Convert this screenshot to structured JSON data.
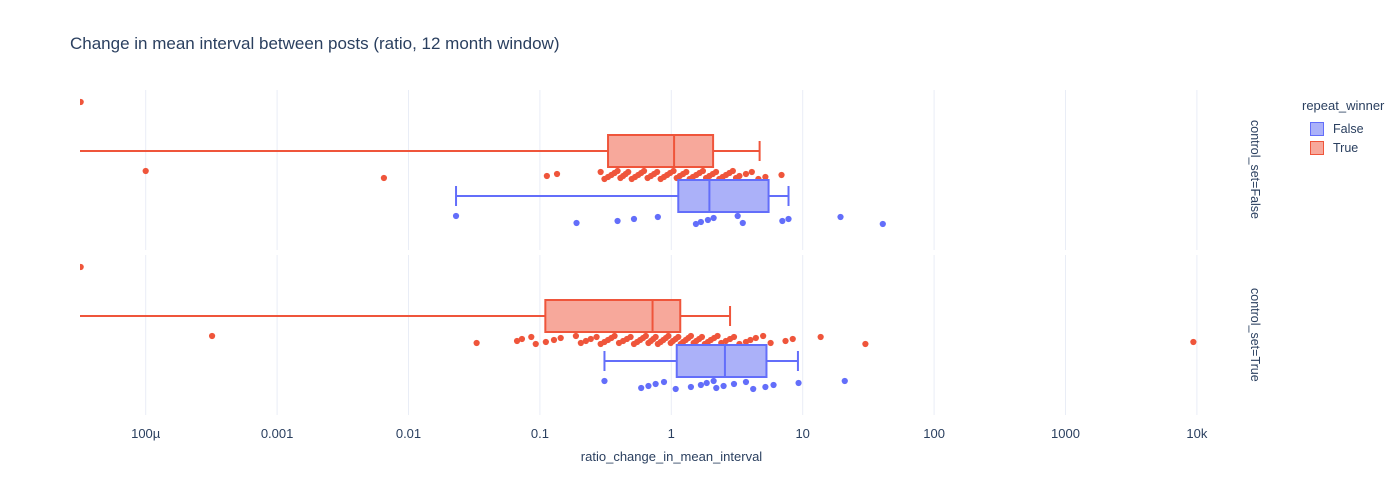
{
  "chart_data": {
    "type": "box",
    "orientation": "horizontal",
    "title": "Change in mean interval between posts (ratio, 12 month window)",
    "xlabel": "ratio_change_in_mean_interval",
    "x_scale": "log",
    "x_range_log10": [
      -4.5,
      4.5
    ],
    "grid": "vertical-only",
    "colors": {
      "text": "#2a3f5f",
      "gridline": "#e9edf6",
      "blue": "#636efa",
      "blue_fill": "#abb1f9",
      "red": "#ef553b",
      "red_fill": "#f7a89b"
    },
    "x_ticks": [
      {
        "value": 0.0001,
        "label": "100µ"
      },
      {
        "value": 0.001,
        "label": "0.001"
      },
      {
        "value": 0.01,
        "label": "0.01"
      },
      {
        "value": 0.1,
        "label": "0.1"
      },
      {
        "value": 1,
        "label": "1"
      },
      {
        "value": 10,
        "label": "10"
      },
      {
        "value": 100,
        "label": "100"
      },
      {
        "value": 1000,
        "label": "1000"
      },
      {
        "value": 10000,
        "label": "10k"
      }
    ],
    "legend": {
      "title": "repeat_winner",
      "position": "right",
      "items": [
        {
          "label": "False",
          "color": "#636efa",
          "fill": "#abb1f9"
        },
        {
          "label": "True",
          "color": "#ef553b",
          "fill": "#f7a89b"
        }
      ]
    },
    "facets": [
      {
        "label": "control_set=False",
        "groups": [
          {
            "name": "True",
            "color": "#ef553b",
            "fill": "#f7a89b",
            "box": {
              "whisker_min": 3.2e-05,
              "q1": 0.33,
              "median": 1.05,
              "q3": 2.08,
              "whisker_max": 4.7,
              "min_clipped": true
            },
            "edge_points": [
              3.2e-05
            ],
            "points": [
              0.0001,
              0.0065,
              0.113,
              0.135,
              0.29,
              0.31,
              0.33,
              0.35,
              0.37,
              0.39,
              0.41,
              0.43,
              0.45,
              0.47,
              0.5,
              0.53,
              0.56,
              0.59,
              0.62,
              0.66,
              0.7,
              0.74,
              0.78,
              0.83,
              0.88,
              0.93,
              0.98,
              1.04,
              1.1,
              1.16,
              1.23,
              1.3,
              1.38,
              1.46,
              1.55,
              1.64,
              1.74,
              1.84,
              1.95,
              2.07,
              2.19,
              2.32,
              2.46,
              2.61,
              2.77,
              2.94,
              3.11,
              3.3,
              3.7,
              4.1,
              4.6,
              5.2,
              6.9
            ]
          },
          {
            "name": "False",
            "color": "#636efa",
            "fill": "#abb1f9",
            "box": {
              "whisker_min": 0.023,
              "q1": 1.13,
              "median": 1.95,
              "q3": 5.5,
              "whisker_max": 7.8,
              "min_clipped": false
            },
            "edge_points": [],
            "points": [
              0.023,
              0.19,
              0.39,
              0.52,
              0.79,
              1.54,
              1.68,
              1.9,
              2.1,
              3.2,
              3.5,
              7.0,
              7.8,
              19.4,
              40.7
            ]
          }
        ]
      },
      {
        "label": "control_set=True",
        "groups": [
          {
            "name": "True",
            "color": "#ef553b",
            "fill": "#f7a89b",
            "box": {
              "whisker_min": 3.2e-05,
              "q1": 0.11,
              "median": 0.72,
              "q3": 1.17,
              "whisker_max": 2.8,
              "min_clipped": true
            },
            "edge_points": [
              3.2e-05
            ],
            "points": [
              0.00032,
              0.033,
              0.067,
              0.073,
              0.086,
              0.093,
              0.111,
              0.128,
              0.144,
              0.188,
              0.205,
              0.224,
              0.244,
              0.27,
              0.29,
              0.31,
              0.33,
              0.35,
              0.37,
              0.4,
              0.43,
              0.46,
              0.49,
              0.52,
              0.55,
              0.58,
              0.61,
              0.64,
              0.67,
              0.7,
              0.73,
              0.76,
              0.79,
              0.83,
              0.87,
              0.91,
              0.95,
              0.99,
              1.03,
              1.08,
              1.13,
              1.18,
              1.23,
              1.29,
              1.35,
              1.41,
              1.48,
              1.55,
              1.63,
              1.71,
              1.8,
              1.9,
              2.0,
              2.12,
              2.25,
              2.4,
              2.6,
              2.8,
              3.0,
              3.3,
              3.7,
              4.0,
              4.4,
              5.0,
              5.7,
              7.4,
              8.4,
              13.7,
              30,
              9400
            ]
          },
          {
            "name": "False",
            "color": "#636efa",
            "fill": "#abb1f9",
            "box": {
              "whisker_min": 0.31,
              "q1": 1.1,
              "median": 2.56,
              "q3": 5.3,
              "whisker_max": 9.2,
              "min_clipped": false
            },
            "edge_points": [],
            "points": [
              0.31,
              0.59,
              0.67,
              0.76,
              0.88,
              1.08,
              1.41,
              1.68,
              1.86,
              2.1,
              2.2,
              2.5,
              3.0,
              3.7,
              4.2,
              5.2,
              6.0,
              9.3,
              20.9
            ]
          }
        ]
      }
    ]
  }
}
